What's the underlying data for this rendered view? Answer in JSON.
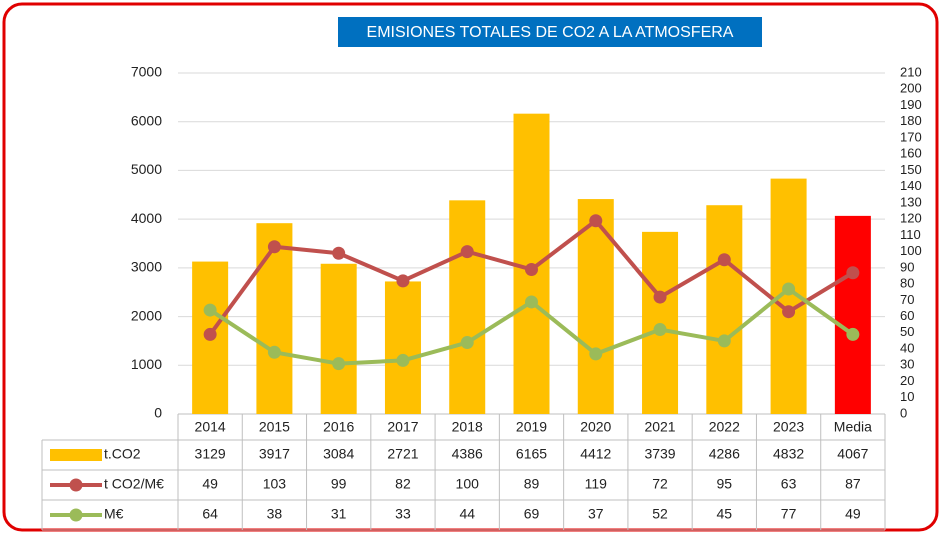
{
  "chart_data": {
    "type": "bar_line_table",
    "title": "EMISIONES TOTALES DE CO2 A LA ATMOSFERA",
    "categories": [
      "2014",
      "2015",
      "2016",
      "2017",
      "2018",
      "2019",
      "2020",
      "2021",
      "2022",
      "2023",
      "Media"
    ],
    "series": [
      {
        "name": "t.CO2",
        "type": "bar",
        "color": "#ffc000",
        "colors": [
          "#ffc000",
          "#ffc000",
          "#ffc000",
          "#ffc000",
          "#ffc000",
          "#ffc000",
          "#ffc000",
          "#ffc000",
          "#ffc000",
          "#ffc000",
          "#ff0000"
        ],
        "values": [
          3129,
          3917,
          3084,
          2721,
          4386,
          6165,
          4412,
          3739,
          4286,
          4832,
          4067
        ]
      },
      {
        "name": "t CO2/M€",
        "type": "line",
        "axis": "y2",
        "color": "#c0504d",
        "values": [
          49,
          103,
          99,
          82,
          100,
          89,
          119,
          72,
          95,
          63,
          87
        ]
      },
      {
        "name": "M€",
        "type": "line",
        "axis": "y2",
        "color": "#9bbb59",
        "values": [
          64,
          38,
          31,
          33,
          44,
          69,
          37,
          52,
          45,
          77,
          49
        ]
      }
    ],
    "ylim": [
      0,
      7000
    ],
    "yticks": [
      0,
      1000,
      2000,
      3000,
      4000,
      5000,
      6000,
      7000
    ],
    "y2lim": [
      0,
      210
    ],
    "y2ticks": [
      0,
      10,
      20,
      30,
      40,
      50,
      60,
      70,
      80,
      90,
      100,
      110,
      120,
      130,
      140,
      150,
      160,
      170,
      180,
      190,
      200,
      210
    ],
    "grid": true
  }
}
